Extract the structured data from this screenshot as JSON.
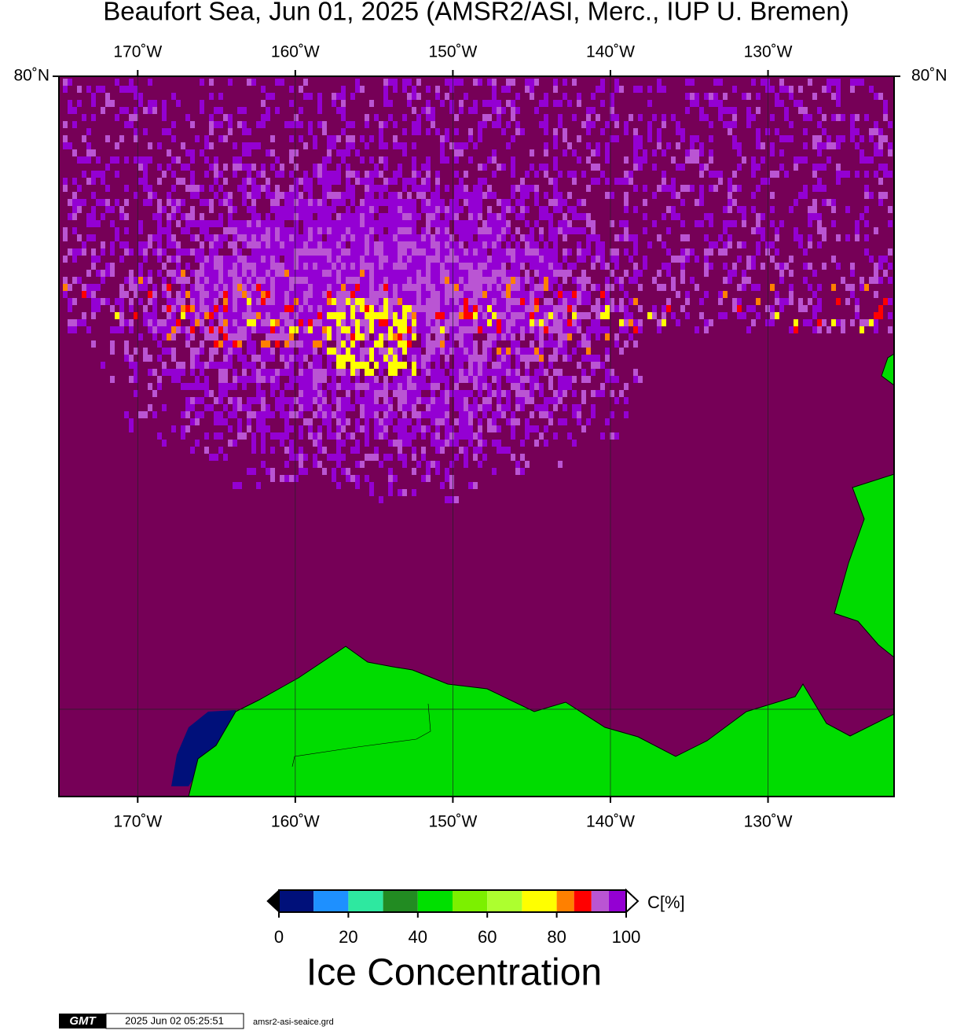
{
  "chart_data": {
    "type": "map",
    "title": "Beaufort Sea, Jun 01, 2025 (AMSR2/ASI, Merc., IUP U. Bremen)",
    "xlim": [
      -175,
      -122
    ],
    "xticks": [
      {
        "value": -170,
        "label": "170˚W"
      },
      {
        "value": -160,
        "label": "160˚W"
      },
      {
        "value": -150,
        "label": "150˚W"
      },
      {
        "value": -140,
        "label": "140˚W"
      },
      {
        "value": -130,
        "label": "130˚W"
      }
    ],
    "ylim": [
      68.9,
      80
    ],
    "yticks": [
      {
        "value": 80,
        "label": "80˚N"
      }
    ],
    "colorbar": {
      "label": "C[%]",
      "title": "Ice Concentration",
      "range": [
        0,
        100
      ],
      "ticks": [
        0,
        20,
        40,
        60,
        80,
        100
      ],
      "bounds": [
        0,
        10,
        20,
        30,
        40,
        50,
        60,
        70,
        80,
        85,
        90,
        95,
        100
      ],
      "colors": [
        "#00107a",
        "#1e90ff",
        "#2ee8a0",
        "#228b22",
        "#00e000",
        "#7cf000",
        "#adff2f",
        "#ffff00",
        "#ff8000",
        "#ff0000",
        "#ba55d3",
        "#9400d3"
      ]
    },
    "footer": {
      "logo": "GMT",
      "timestamp": "2025 Jun 02 05:25:51",
      "file": "amsr2-asi-seaice.grd"
    }
  }
}
